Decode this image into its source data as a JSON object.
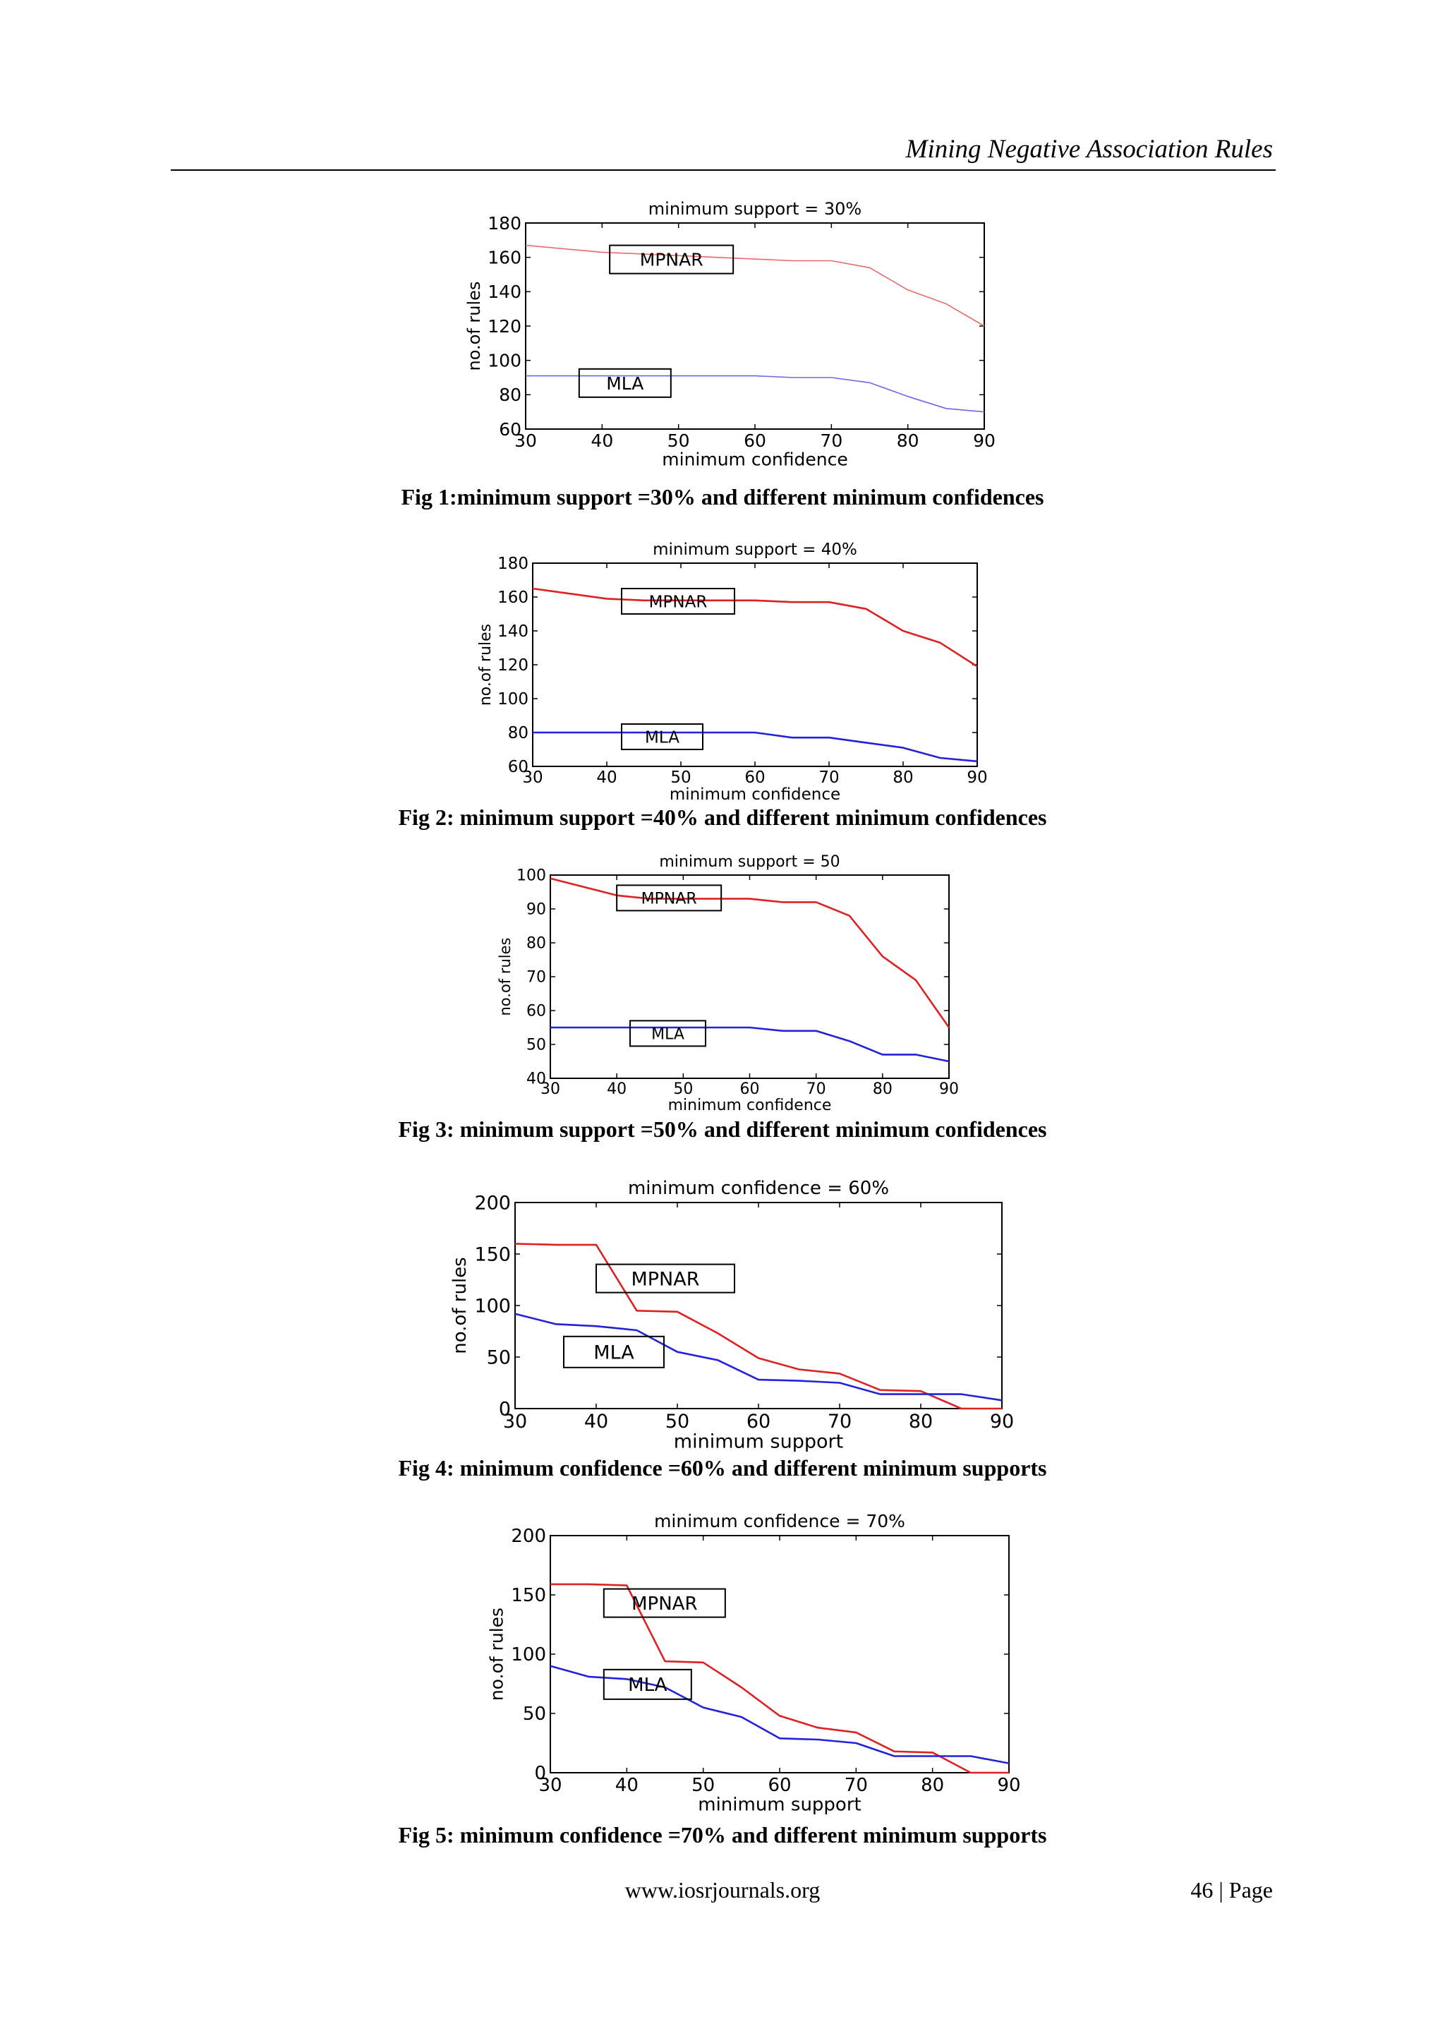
{
  "header": {
    "title": "Mining Negative Association Rules"
  },
  "figures": [
    {
      "caption": "Fig 1:minimum support =30% and different minimum confidences",
      "chart_data": {
        "type": "line",
        "title": "minimum support = 30%",
        "xlabel": "minimum confidence",
        "ylabel": "no.of rules",
        "xlim": [
          30,
          90
        ],
        "ylim": [
          60,
          180
        ],
        "xticks": [
          30,
          40,
          50,
          60,
          70,
          80,
          90
        ],
        "yticks": [
          60,
          80,
          100,
          120,
          140,
          160,
          180
        ],
        "series": [
          {
            "name": "MPNAR",
            "color": "#e86a6a",
            "x": [
              30,
              40,
              45,
              50,
              55,
              60,
              65,
              70,
              75,
              80,
              85,
              90
            ],
            "y": [
              167,
              163,
              162,
              161,
              160,
              159,
              158,
              158,
              154,
              141,
              133,
              120
            ]
          },
          {
            "name": "MLA",
            "color": "#6a6ae8",
            "x": [
              30,
              40,
              50,
              60,
              65,
              70,
              75,
              80,
              85,
              90
            ],
            "y": [
              91,
              91,
              91,
              91,
              90,
              90,
              87,
              79,
              72,
              70
            ]
          }
        ],
        "annotations": [
          {
            "text": "MPNAR",
            "x": 41,
            "y": 167
          },
          {
            "text": "MLA",
            "x": 37,
            "y": 95
          }
        ]
      }
    },
    {
      "caption": "Fig 2: minimum support =40% and different minimum confidences",
      "chart_data": {
        "type": "line",
        "title": "minimum support = 40%",
        "xlabel": "minimum confidence",
        "ylabel": "no.of rules",
        "xlim": [
          30,
          90
        ],
        "ylim": [
          60,
          180
        ],
        "xticks": [
          30,
          40,
          50,
          60,
          70,
          80,
          90
        ],
        "yticks": [
          60,
          80,
          100,
          120,
          140,
          160,
          180
        ],
        "series": [
          {
            "name": "MPNAR",
            "color": "#dd2222",
            "x": [
              30,
              40,
              45,
              50,
              55,
              60,
              65,
              70,
              75,
              80,
              85,
              90
            ],
            "y": [
              165,
              159,
              158,
              158,
              158,
              158,
              157,
              157,
              153,
              140,
              133,
              119
            ]
          },
          {
            "name": "MLA",
            "color": "#2222dd",
            "x": [
              30,
              40,
              50,
              60,
              65,
              70,
              75,
              80,
              85,
              90
            ],
            "y": [
              80,
              80,
              80,
              80,
              77,
              77,
              74,
              71,
              65,
              63
            ]
          }
        ],
        "annotations": [
          {
            "text": "MPNAR",
            "x": 42,
            "y": 165
          },
          {
            "text": "MLA",
            "x": 42,
            "y": 85
          }
        ]
      }
    },
    {
      "caption": "Fig 3: minimum support =50% and different minimum confidences",
      "chart_data": {
        "type": "line",
        "title": "minimum support = 50",
        "xlabel": "minimum confidence",
        "ylabel": "no.of rules",
        "xlim": [
          30,
          90
        ],
        "ylim": [
          40,
          100
        ],
        "xticks": [
          30,
          40,
          50,
          60,
          70,
          80,
          90
        ],
        "yticks": [
          40,
          50,
          60,
          70,
          80,
          90,
          100
        ],
        "series": [
          {
            "name": "MPNAR",
            "color": "#dd2222",
            "x": [
              30,
              40,
              45,
              50,
              55,
              60,
              65,
              70,
              75,
              80,
              85,
              90
            ],
            "y": [
              99,
              94,
              93,
              93,
              93,
              93,
              92,
              92,
              88,
              76,
              69,
              55
            ]
          },
          {
            "name": "MLA",
            "color": "#2222dd",
            "x": [
              30,
              40,
              50,
              60,
              65,
              70,
              75,
              80,
              85,
              90
            ],
            "y": [
              55,
              55,
              55,
              55,
              54,
              54,
              51,
              47,
              47,
              45
            ]
          }
        ],
        "annotations": [
          {
            "text": "MPNAR",
            "x": 40,
            "y": 97
          },
          {
            "text": "MLA",
            "x": 42,
            "y": 57
          }
        ]
      }
    },
    {
      "caption": "Fig 4: minimum confidence =60% and different minimum supports",
      "chart_data": {
        "type": "line",
        "title": "minimum confidence = 60%",
        "xlabel": "minimum support",
        "ylabel": "no.of rules",
        "xlim": [
          30,
          90
        ],
        "ylim": [
          0,
          200
        ],
        "xticks": [
          30,
          40,
          50,
          60,
          70,
          80,
          90
        ],
        "yticks": [
          0,
          50,
          100,
          150,
          200
        ],
        "series": [
          {
            "name": "MPNAR",
            "color": "#dd2222",
            "x": [
              30,
              35,
              40,
              45,
              50,
              55,
              60,
              65,
              70,
              75,
              80,
              85,
              90
            ],
            "y": [
              160,
              159,
              159,
              95,
              94,
              73,
              49,
              38,
              34,
              18,
              17,
              0,
              0
            ]
          },
          {
            "name": "MLA",
            "color": "#2222dd",
            "x": [
              30,
              35,
              40,
              45,
              50,
              55,
              60,
              65,
              70,
              75,
              80,
              85,
              90
            ],
            "y": [
              92,
              82,
              80,
              76,
              55,
              47,
              28,
              27,
              25,
              14,
              14,
              14,
              8
            ]
          }
        ],
        "annotations": [
          {
            "text": "MPNAR",
            "x": 40,
            "y": 140
          },
          {
            "text": "MLA",
            "x": 36,
            "y": 70
          }
        ]
      }
    },
    {
      "caption": "Fig 5: minimum confidence =70% and different minimum supports",
      "chart_data": {
        "type": "line",
        "title": "minimum confidence = 70%",
        "xlabel": "minimum support",
        "ylabel": "no.of rules",
        "xlim": [
          30,
          90
        ],
        "ylim": [
          0,
          200
        ],
        "xticks": [
          30,
          40,
          50,
          60,
          70,
          80,
          90
        ],
        "yticks": [
          0,
          50,
          100,
          150,
          200
        ],
        "series": [
          {
            "name": "MPNAR",
            "color": "#dd2222",
            "x": [
              30,
              35,
              40,
              45,
              50,
              55,
              60,
              65,
              70,
              75,
              80,
              85,
              90
            ],
            "y": [
              159,
              159,
              158,
              94,
              93,
              72,
              48,
              38,
              34,
              18,
              17,
              0,
              0
            ]
          },
          {
            "name": "MLA",
            "color": "#2222dd",
            "x": [
              30,
              35,
              40,
              45,
              50,
              55,
              60,
              65,
              70,
              75,
              80,
              85,
              90
            ],
            "y": [
              90,
              81,
              79,
              72,
              55,
              47,
              29,
              28,
              25,
              14,
              14,
              14,
              8
            ]
          }
        ],
        "annotations": [
          {
            "text": "MPNAR",
            "x": 37,
            "y": 155
          },
          {
            "text": "MLA",
            "x": 37,
            "y": 87
          }
        ]
      }
    }
  ],
  "footer": {
    "url": "www.iosrjournals.org",
    "page": "46 | Page"
  }
}
